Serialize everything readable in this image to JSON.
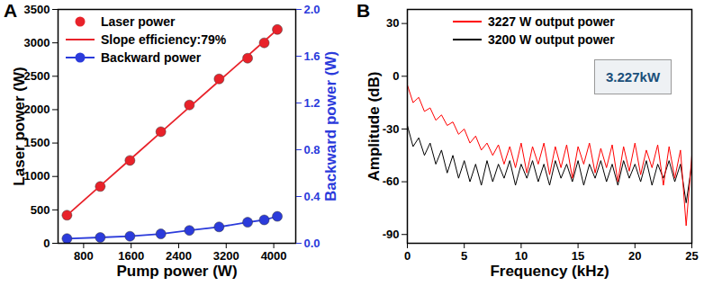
{
  "chart_data": [
    {
      "type": "line",
      "title": "A",
      "xlabel": "Pump power (W)",
      "ylabel": "Laser power (W)",
      "y2label": "Backward power (W)",
      "x": [
        520,
        1080,
        1580,
        2100,
        2580,
        3080,
        3560,
        3840,
        4060
      ],
      "series": [
        {
          "name": "Laser power",
          "type": "scatter",
          "marker": "circle",
          "color": "#e8222a",
          "values": [
            420,
            850,
            1240,
            1670,
            2070,
            2460,
            2770,
            3000,
            3200
          ]
        },
        {
          "name": "Slope efficiency:79%",
          "type": "line",
          "color": "#e8222a",
          "values": [
            420,
            860,
            1252,
            1660,
            2037,
            2430,
            2806,
            3026,
            3199
          ]
        },
        {
          "name": "Backward power",
          "type": "line",
          "marker": "circle",
          "color": "#2b3bdb",
          "axis": "y2",
          "values": [
            0.04,
            0.05,
            0.06,
            0.08,
            0.11,
            0.14,
            0.18,
            0.2,
            0.23
          ]
        }
      ],
      "xlim": [
        370,
        4370
      ],
      "xticks": [
        800,
        1600,
        2400,
        3200,
        4000
      ],
      "ylim": [
        0,
        3500
      ],
      "yticks": [
        0,
        500,
        1000,
        1500,
        2000,
        2500,
        3000,
        3500
      ],
      "y2lim": [
        0,
        2
      ],
      "y2ticks": [
        {
          "value": 0,
          "label": "0.0"
        },
        {
          "value": 0.4,
          "label": "0.4"
        },
        {
          "value": 0.8,
          "label": "0.8"
        },
        {
          "value": 1.2,
          "label": "1.2"
        },
        {
          "value": 1.6,
          "label": "1.6"
        },
        {
          "value": 2,
          "label": "2.0"
        }
      ],
      "grid": false,
      "legend": "upper left"
    },
    {
      "type": "line",
      "title": "B",
      "xlabel": "Frequency (kHz)",
      "ylabel": "Amplitude (dB)",
      "annotations": [
        "3.227kW"
      ],
      "x": [
        0,
        0.5,
        1,
        1.5,
        2,
        2.5,
        3,
        3.5,
        4,
        4.5,
        5,
        5.5,
        6,
        6.5,
        7,
        7.5,
        8,
        8.5,
        9,
        9.5,
        10,
        10.5,
        11,
        11.5,
        12,
        12.5,
        13,
        13.5,
        14,
        14.5,
        15,
        15.5,
        16,
        16.5,
        17,
        17.5,
        18,
        18.5,
        19,
        19.5,
        20,
        20.5,
        21,
        21.5,
        22,
        22.5,
        23,
        23.5,
        24,
        24.5,
        25
      ],
      "series": [
        {
          "name": "3227 W output power",
          "color": "#ff0000",
          "values": [
            -5,
            -15,
            -12,
            -20,
            -18,
            -25,
            -22,
            -28,
            -26,
            -33,
            -30,
            -38,
            -34,
            -42,
            -38,
            -45,
            -39,
            -50,
            -40,
            -52,
            -38,
            -55,
            -40,
            -50,
            -38,
            -56,
            -40,
            -52,
            -39,
            -58,
            -40,
            -50,
            -38,
            -55,
            -41,
            -52,
            -39,
            -60,
            -40,
            -54,
            -38,
            -56,
            -42,
            -52,
            -39,
            -62,
            -40,
            -58,
            -42,
            -85,
            -45
          ]
        },
        {
          "name": "3200 W output power",
          "color": "#000000",
          "values": [
            -28,
            -40,
            -35,
            -45,
            -38,
            -50,
            -42,
            -55,
            -45,
            -58,
            -48,
            -60,
            -50,
            -62,
            -48,
            -60,
            -50,
            -58,
            -48,
            -62,
            -50,
            -58,
            -48,
            -60,
            -50,
            -62,
            -48,
            -58,
            -50,
            -60,
            -48,
            -62,
            -50,
            -58,
            -48,
            -60,
            -50,
            -62,
            -48,
            -58,
            -50,
            -60,
            -48,
            -62,
            -50,
            -58,
            -48,
            -60,
            -50,
            -72,
            -50
          ]
        }
      ],
      "xlim": [
        0,
        25
      ],
      "xticks": [
        0,
        5,
        10,
        15,
        20,
        25
      ],
      "ylim": [
        -95,
        38
      ],
      "yticks": [
        -90,
        -60,
        -30,
        0,
        30
      ],
      "grid": false,
      "legend": "upper right"
    }
  ]
}
